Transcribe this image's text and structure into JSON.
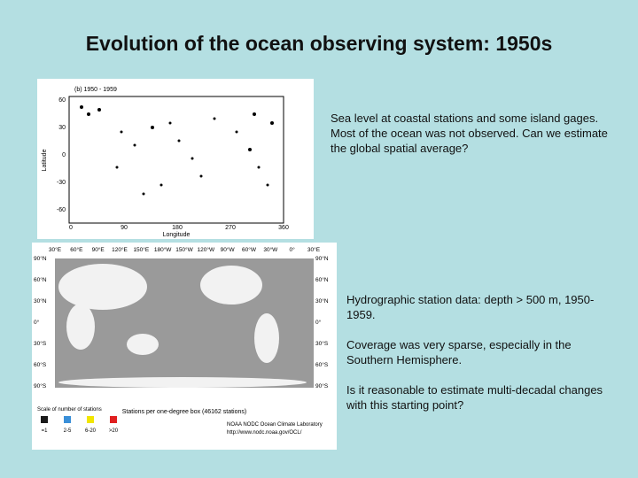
{
  "title": "Evolution of the ocean observing system: 1950s",
  "coastal_text": "Sea level at coastal stations and some island gages. Most of the ocean was not observed. Can we estimate the global spatial average?",
  "hydro_paragraphs": [
    "Hydrographic station data: depth > 500 m, 1950-1959.",
    "Coverage was very sparse, especially in the Southern Hemisphere.",
    "Is it reasonable to estimate multi-decadal changes with this starting point?"
  ],
  "map1": {
    "panel_label": "(b) 1950 - 1959",
    "y_label": "Latitude",
    "x_label": "Longitude",
    "yticks": [
      "60",
      "30",
      "0",
      "-30",
      "-60"
    ],
    "xticks": [
      "0",
      "90",
      "180",
      "270",
      "360"
    ]
  },
  "map2": {
    "lon_labels": [
      "30°E",
      "60°E",
      "90°E",
      "120°E",
      "150°E",
      "180°W",
      "150°W",
      "120°W",
      "90°W",
      "60°W",
      "30°W",
      "0°",
      "30°E"
    ],
    "lat_labels": [
      "90°N",
      "60°N",
      "30°N",
      "0°",
      "30°S",
      "60°S",
      "90°S"
    ],
    "caption": "Stations per one-degree box (46162 stations)",
    "legend_title": "Scale of number of stations",
    "legend": [
      {
        "label": "=1",
        "color": "#1a1a1a"
      },
      {
        "label": "2-5",
        "color": "#3a8fd8"
      },
      {
        "label": "6-20",
        "color": "#f2e600"
      },
      {
        "label": ">20",
        "color": "#e02020"
      }
    ],
    "credit": "NOAA NODC Ocean Climate Laboratory",
    "url": "http://www.nodc.noaa.gov/OCL/"
  }
}
